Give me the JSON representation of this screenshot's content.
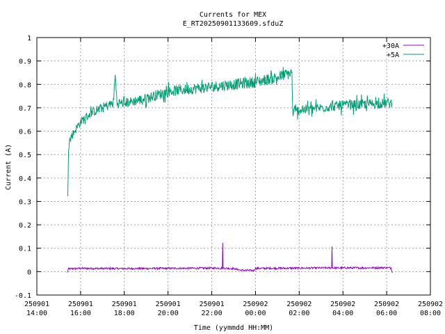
{
  "chart_data": {
    "type": "line",
    "title": "Currents for MEX",
    "subtitle": "E_RT20250901133609.sfduZ",
    "xlabel": "Time (yymmdd HH:MM)",
    "ylabel": "Current (A)",
    "ylim": [
      -0.1,
      1.0
    ],
    "y_ticks": [
      "-0.1",
      "0",
      "0.1",
      "0.2",
      "0.3",
      "0.4",
      "0.5",
      "0.6",
      "0.7",
      "0.8",
      "0.9",
      "1"
    ],
    "xlim": [
      "2025-09-01 14:00",
      "2025-09-02 08:00"
    ],
    "x_ticks": [
      {
        "date": "250901",
        "time": "14:00"
      },
      {
        "date": "250901",
        "time": "16:00"
      },
      {
        "date": "250901",
        "time": "18:00"
      },
      {
        "date": "250901",
        "time": "20:00"
      },
      {
        "date": "250901",
        "time": "22:00"
      },
      {
        "date": "250902",
        "time": "00:00"
      },
      {
        "date": "250902",
        "time": "02:00"
      },
      {
        "date": "250902",
        "time": "04:00"
      },
      {
        "date": "250902",
        "time": "06:00"
      },
      {
        "date": "250902",
        "time": "08:00"
      }
    ],
    "grid": true,
    "legend_position": "top-right",
    "series": [
      {
        "name": "+30A",
        "color": "#9400d3",
        "points": [
          [
            "2025-09-01 15:23",
            -0.005
          ],
          [
            "2025-09-01 15:27",
            0.012
          ],
          [
            "2025-09-01 16:00",
            0.014
          ],
          [
            "2025-09-01 18:00",
            0.013
          ],
          [
            "2025-09-01 20:00",
            0.014
          ],
          [
            "2025-09-01 22:00",
            0.015
          ],
          [
            "2025-09-01 22:29",
            0.015
          ],
          [
            "2025-09-01 22:30",
            0.12
          ],
          [
            "2025-09-01 22:31",
            0.015
          ],
          [
            "2025-09-01 23:00",
            0.013
          ],
          [
            "2025-09-01 23:20",
            0.006
          ],
          [
            "2025-09-01 23:55",
            0.005
          ],
          [
            "2025-09-02 00:00",
            0.014
          ],
          [
            "2025-09-02 02:00",
            0.015
          ],
          [
            "2025-09-02 03:29",
            0.016
          ],
          [
            "2025-09-02 03:30",
            0.108
          ],
          [
            "2025-09-02 03:31",
            0.016
          ],
          [
            "2025-09-02 05:00",
            0.016
          ],
          [
            "2025-09-02 06:00",
            0.017
          ],
          [
            "2025-09-02 06:12",
            0.016
          ],
          [
            "2025-09-02 06:16",
            -0.005
          ]
        ]
      },
      {
        "name": "+5A",
        "color": "#009e73",
        "points": [
          [
            "2025-09-01 15:25",
            0.33
          ],
          [
            "2025-09-01 15:27",
            0.55
          ],
          [
            "2025-09-01 15:35",
            0.58
          ],
          [
            "2025-09-01 16:00",
            0.64
          ],
          [
            "2025-09-01 16:30",
            0.68
          ],
          [
            "2025-09-01 17:00",
            0.7
          ],
          [
            "2025-09-01 17:30",
            0.72
          ],
          [
            "2025-09-01 17:35",
            0.84
          ],
          [
            "2025-09-01 17:40",
            0.72
          ],
          [
            "2025-09-01 18:00",
            0.72
          ],
          [
            "2025-09-01 19:00",
            0.74
          ],
          [
            "2025-09-01 20:00",
            0.77
          ],
          [
            "2025-09-01 21:00",
            0.78
          ],
          [
            "2025-09-01 22:00",
            0.79
          ],
          [
            "2025-09-01 23:00",
            0.8
          ],
          [
            "2025-09-02 00:00",
            0.81
          ],
          [
            "2025-09-02 01:00",
            0.83
          ],
          [
            "2025-09-02 01:40",
            0.85
          ],
          [
            "2025-09-02 01:42",
            0.68
          ],
          [
            "2025-09-02 02:00",
            0.69
          ],
          [
            "2025-09-02 03:00",
            0.7
          ],
          [
            "2025-09-02 04:00",
            0.71
          ],
          [
            "2025-09-02 05:00",
            0.715
          ],
          [
            "2025-09-02 06:00",
            0.72
          ],
          [
            "2025-09-02 06:15",
            0.72
          ]
        ]
      }
    ]
  }
}
